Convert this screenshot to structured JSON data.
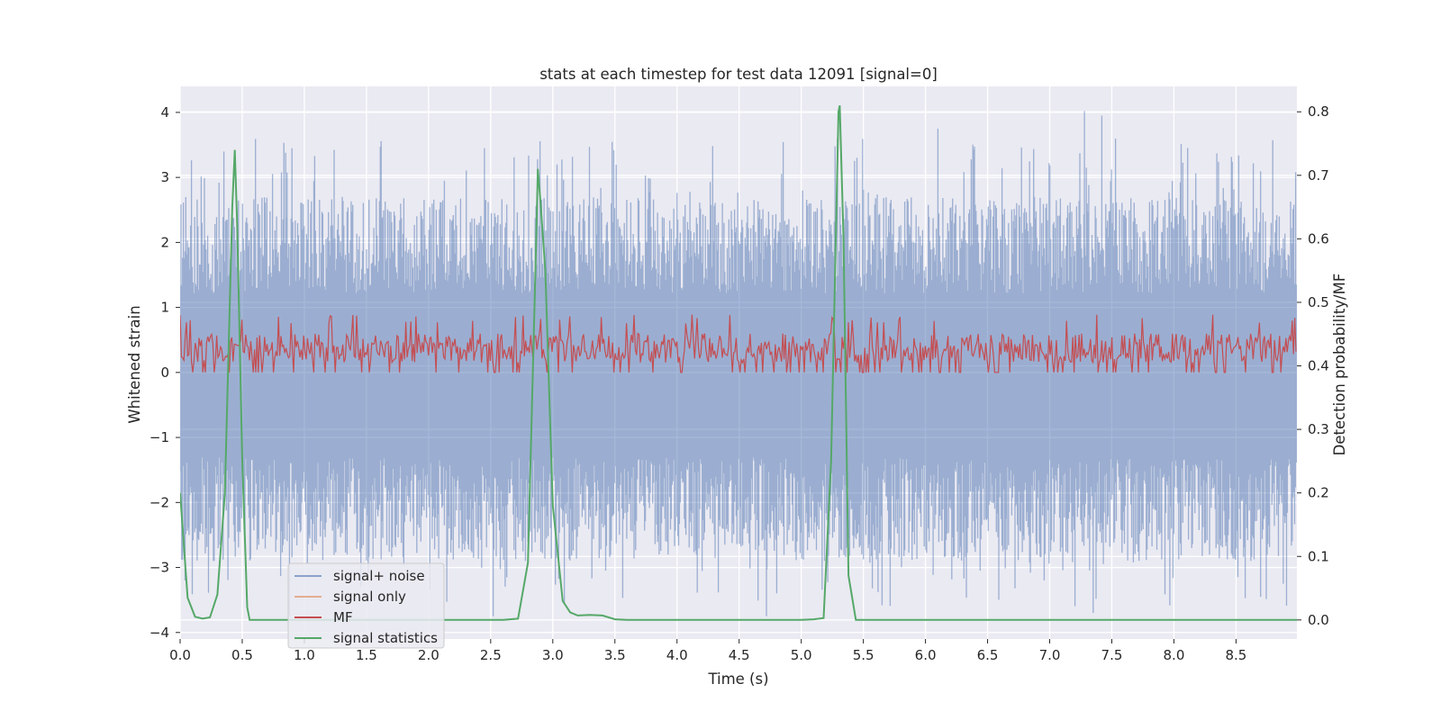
{
  "chart_data": {
    "type": "line",
    "title": "stats at each timestep for test data 12091 [signal=0]",
    "xlabel": "Time (s)",
    "ylabel": "Whitened strain",
    "ylabel_right": "Detection probability/MF",
    "xlim": [
      0,
      8.99
    ],
    "ylim": [
      -4.1,
      4.4
    ],
    "ylim_right": [
      -0.03,
      0.84
    ],
    "x_ticks": [
      0.0,
      0.5,
      1.0,
      1.5,
      2.0,
      2.5,
      3.0,
      3.5,
      4.0,
      4.5,
      5.0,
      5.5,
      6.0,
      6.5,
      7.0,
      7.5,
      8.0,
      8.5
    ],
    "x_tick_labels": [
      "0.0",
      "0.5",
      "1.0",
      "1.5",
      "2.0",
      "2.5",
      "3.0",
      "3.5",
      "4.0",
      "4.5",
      "5.0",
      "5.5",
      "6.0",
      "6.5",
      "7.0",
      "7.5",
      "8.0",
      "8.5"
    ],
    "y_ticks": [
      4,
      3,
      2,
      1,
      0,
      -1,
      -2,
      -3,
      -4
    ],
    "y_tick_labels": [
      "4",
      "3",
      "2",
      "1",
      "0",
      "−1",
      "−2",
      "−3",
      "−4"
    ],
    "y_right_ticks": [
      0.8,
      0.7,
      0.6,
      0.5,
      0.4,
      0.3,
      0.2,
      0.1,
      0.0
    ],
    "y_right_tick_labels": [
      "0.8",
      "0.7",
      "0.6",
      "0.5",
      "0.4",
      "0.3",
      "0.2",
      "0.1",
      "0.0"
    ],
    "grid": true,
    "legend_position": "lower-left",
    "background": "#eaeaf2",
    "series": [
      {
        "name": "signal+ noise",
        "axis": "left",
        "color": "#4c72b0",
        "opacity": 0.5,
        "sample_rate": 2048,
        "envelope_min": -2.9,
        "envelope_max": 2.7,
        "extreme_peaks": [
          [
            0.85,
            3.38
          ],
          [
            2.45,
            3.45
          ],
          [
            6.1,
            3.75
          ],
          [
            7.28,
            4.02
          ],
          [
            7.42,
            3.95
          ],
          [
            8.98,
            3.08
          ],
          [
            0.04,
            -3.2
          ],
          [
            0.88,
            -3.75
          ],
          [
            2.52,
            -3.75
          ],
          [
            4.72,
            -3.75
          ],
          [
            7.35,
            -3.7
          ],
          [
            8.88,
            -3.25
          ]
        ]
      },
      {
        "name": "signal only",
        "axis": "left",
        "color": "#dd8452",
        "values_note": ""
      },
      {
        "name": "MF",
        "axis": "left",
        "color": "#c44e52",
        "band_min": 0.0,
        "band_max": 0.75,
        "extreme_peaks": [
          [
            3.0,
            0.95
          ],
          [
            5.3,
            0.92
          ]
        ]
      },
      {
        "name": "signal statistics",
        "axis": "right",
        "color": "#55a868",
        "x": [
          0.0,
          0.06,
          0.12,
          0.18,
          0.24,
          0.3,
          0.36,
          0.42,
          0.44,
          0.46,
          0.5,
          0.54,
          0.56,
          0.6,
          1.0,
          2.0,
          2.6,
          2.72,
          2.8,
          2.86,
          2.88,
          2.9,
          2.94,
          3.0,
          3.08,
          3.14,
          3.2,
          3.3,
          3.4,
          3.5,
          3.6,
          4.0,
          5.0,
          5.1,
          5.18,
          5.24,
          5.3,
          5.31,
          5.34,
          5.38,
          5.44,
          5.5,
          6.0,
          7.0,
          8.0,
          8.99
        ],
        "y": [
          0.2,
          0.035,
          0.005,
          0.002,
          0.004,
          0.04,
          0.2,
          0.65,
          0.74,
          0.62,
          0.25,
          0.02,
          0.0,
          0.0,
          0.0,
          0.0,
          0.0,
          0.002,
          0.09,
          0.55,
          0.71,
          0.66,
          0.55,
          0.18,
          0.03,
          0.012,
          0.007,
          0.008,
          0.007,
          0.001,
          0.0,
          0.0,
          0.0,
          0.001,
          0.003,
          0.25,
          0.8,
          0.81,
          0.6,
          0.07,
          0.0,
          0.0,
          0.0,
          0.0,
          0.0,
          0.0
        ]
      }
    ]
  }
}
